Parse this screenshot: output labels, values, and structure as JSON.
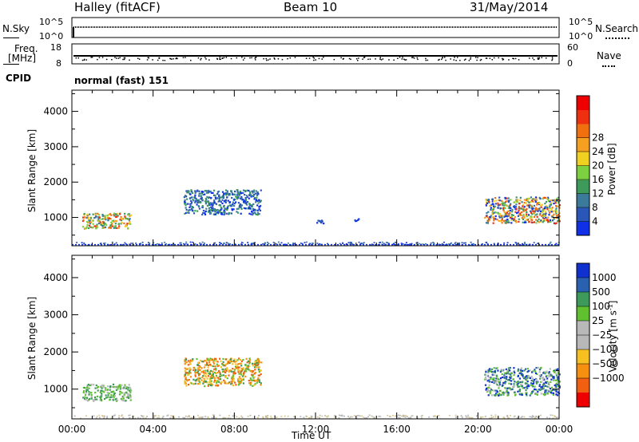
{
  "header": {
    "station": "Halley (fitACF)",
    "beam": "Beam 10",
    "date": "31/May/2014"
  },
  "panels": {
    "nsky": {
      "label": "N.Sky",
      "tick_top": "10^5",
      "tick_bottom": "10^0",
      "right_label": "N.Search",
      "right_tick_top": "10^5",
      "right_tick_bottom": "10^0"
    },
    "freq": {
      "label": "Freq.",
      "unit": "[MHz]",
      "tick_top": "18",
      "tick_bottom": "8",
      "right_tick_top": "60",
      "right_tick_bottom": "0",
      "right_label": "Nave"
    },
    "cpid": {
      "label": "CPID",
      "mode": "normal (fast) 151"
    }
  },
  "chart_data": [
    {
      "type": "heatmap",
      "panel": "power",
      "ylabel": "Slant Range [km]",
      "xlabel": "",
      "ylim": [
        200,
        4600
      ],
      "xlim": [
        0,
        24
      ],
      "yticks": [
        1000,
        2000,
        3000,
        4000
      ],
      "colorbar": {
        "title": "Power [dB]",
        "ticks": [
          "4",
          "8",
          "12",
          "16",
          "20",
          "24",
          "28"
        ],
        "colors": [
          "#1030e8",
          "#2a56b8",
          "#3b7a9a",
          "#3d9a5a",
          "#7dd040",
          "#f0d020",
          "#f5a020",
          "#f07010",
          "#ee3010",
          "#ee0000"
        ]
      },
      "regions": [
        {
          "t0": 0.5,
          "t1": 2.9,
          "r0": 700,
          "r1": 1150,
          "levels": [
            2,
            3,
            4,
            5,
            6,
            7,
            8
          ]
        },
        {
          "t0": 5.5,
          "t1": 9.3,
          "r0": 1100,
          "r1": 1800,
          "levels": [
            0,
            1,
            2,
            3
          ]
        },
        {
          "t0": 20.3,
          "t1": 24.0,
          "r0": 850,
          "r1": 1600,
          "levels": [
            0,
            1,
            2,
            3,
            4,
            5,
            6,
            7,
            8
          ]
        },
        {
          "t0": 11.8,
          "t1": 12.4,
          "r0": 850,
          "r1": 950,
          "levels": [
            0,
            1
          ]
        },
        {
          "t0": 13.9,
          "t1": 14.2,
          "r0": 900,
          "r1": 1000,
          "levels": [
            0,
            1
          ]
        }
      ]
    },
    {
      "type": "heatmap",
      "panel": "velocity",
      "ylabel": "Slant Range [km]",
      "xlabel": "Time UT",
      "ylim": [
        200,
        4600
      ],
      "xlim": [
        0,
        24
      ],
      "yticks": [
        1000,
        2000,
        3000,
        4000
      ],
      "xticks": [
        "00:00",
        "04:00",
        "08:00",
        "12:00",
        "16:00",
        "20:00",
        "00:00"
      ],
      "colorbar": {
        "title": "Velocity [m s",
        "title_sup": "-1",
        "title_close": "]",
        "ticks": [
          "1000",
          "500",
          "100",
          "25",
          "−25",
          "−100",
          "−500",
          "−1000"
        ],
        "colors": [
          "#1030d0",
          "#2a60b0",
          "#3d9a5a",
          "#60c030",
          "#b8b8b8",
          "#b8b8b8",
          "#f5c020",
          "#f59010",
          "#f06010",
          "#ee0000"
        ]
      },
      "regions": [
        {
          "t0": 0.5,
          "t1": 2.9,
          "r0": 700,
          "r1": 1150,
          "levels": [
            2,
            3,
            4
          ]
        },
        {
          "t0": 5.5,
          "t1": 9.3,
          "r0": 1100,
          "r1": 1850,
          "levels": [
            6,
            7,
            8,
            2,
            3
          ]
        },
        {
          "t0": 20.3,
          "t1": 24.0,
          "r0": 850,
          "r1": 1600,
          "levels": [
            0,
            1,
            2,
            3,
            4
          ]
        }
      ]
    }
  ]
}
